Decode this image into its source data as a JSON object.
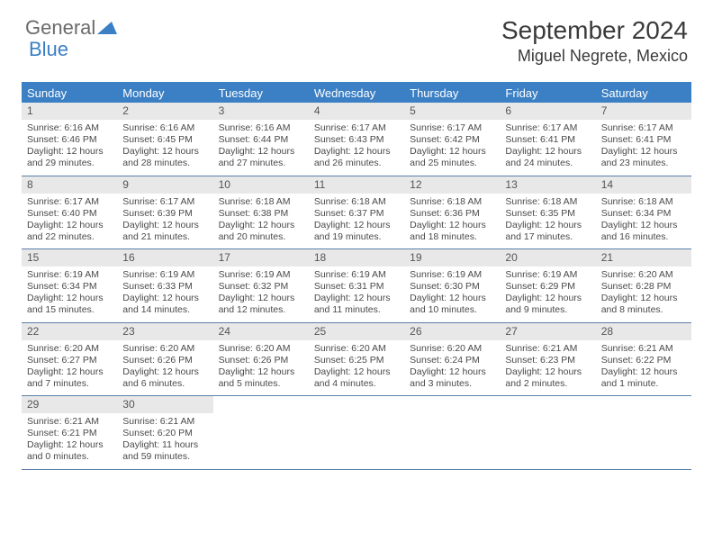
{
  "logo": {
    "text1": "General",
    "text2": "Blue"
  },
  "title": "September 2024",
  "location": "Miguel Negrete, Mexico",
  "colors": {
    "header_blue": "#3b7fc4",
    "daynum_bg": "#e8e8e8",
    "text": "#4a4a4a",
    "week_border": "#5a7fa8"
  },
  "weekdays": [
    "Sunday",
    "Monday",
    "Tuesday",
    "Wednesday",
    "Thursday",
    "Friday",
    "Saturday"
  ],
  "weeks": [
    [
      {
        "n": "1",
        "sr": "6:16 AM",
        "ss": "6:46 PM",
        "dl": "12 hours and 29 minutes."
      },
      {
        "n": "2",
        "sr": "6:16 AM",
        "ss": "6:45 PM",
        "dl": "12 hours and 28 minutes."
      },
      {
        "n": "3",
        "sr": "6:16 AM",
        "ss": "6:44 PM",
        "dl": "12 hours and 27 minutes."
      },
      {
        "n": "4",
        "sr": "6:17 AM",
        "ss": "6:43 PM",
        "dl": "12 hours and 26 minutes."
      },
      {
        "n": "5",
        "sr": "6:17 AM",
        "ss": "6:42 PM",
        "dl": "12 hours and 25 minutes."
      },
      {
        "n": "6",
        "sr": "6:17 AM",
        "ss": "6:41 PM",
        "dl": "12 hours and 24 minutes."
      },
      {
        "n": "7",
        "sr": "6:17 AM",
        "ss": "6:41 PM",
        "dl": "12 hours and 23 minutes."
      }
    ],
    [
      {
        "n": "8",
        "sr": "6:17 AM",
        "ss": "6:40 PM",
        "dl": "12 hours and 22 minutes."
      },
      {
        "n": "9",
        "sr": "6:17 AM",
        "ss": "6:39 PM",
        "dl": "12 hours and 21 minutes."
      },
      {
        "n": "10",
        "sr": "6:18 AM",
        "ss": "6:38 PM",
        "dl": "12 hours and 20 minutes."
      },
      {
        "n": "11",
        "sr": "6:18 AM",
        "ss": "6:37 PM",
        "dl": "12 hours and 19 minutes."
      },
      {
        "n": "12",
        "sr": "6:18 AM",
        "ss": "6:36 PM",
        "dl": "12 hours and 18 minutes."
      },
      {
        "n": "13",
        "sr": "6:18 AM",
        "ss": "6:35 PM",
        "dl": "12 hours and 17 minutes."
      },
      {
        "n": "14",
        "sr": "6:18 AM",
        "ss": "6:34 PM",
        "dl": "12 hours and 16 minutes."
      }
    ],
    [
      {
        "n": "15",
        "sr": "6:19 AM",
        "ss": "6:34 PM",
        "dl": "12 hours and 15 minutes."
      },
      {
        "n": "16",
        "sr": "6:19 AM",
        "ss": "6:33 PM",
        "dl": "12 hours and 14 minutes."
      },
      {
        "n": "17",
        "sr": "6:19 AM",
        "ss": "6:32 PM",
        "dl": "12 hours and 12 minutes."
      },
      {
        "n": "18",
        "sr": "6:19 AM",
        "ss": "6:31 PM",
        "dl": "12 hours and 11 minutes."
      },
      {
        "n": "19",
        "sr": "6:19 AM",
        "ss": "6:30 PM",
        "dl": "12 hours and 10 minutes."
      },
      {
        "n": "20",
        "sr": "6:19 AM",
        "ss": "6:29 PM",
        "dl": "12 hours and 9 minutes."
      },
      {
        "n": "21",
        "sr": "6:20 AM",
        "ss": "6:28 PM",
        "dl": "12 hours and 8 minutes."
      }
    ],
    [
      {
        "n": "22",
        "sr": "6:20 AM",
        "ss": "6:27 PM",
        "dl": "12 hours and 7 minutes."
      },
      {
        "n": "23",
        "sr": "6:20 AM",
        "ss": "6:26 PM",
        "dl": "12 hours and 6 minutes."
      },
      {
        "n": "24",
        "sr": "6:20 AM",
        "ss": "6:26 PM",
        "dl": "12 hours and 5 minutes."
      },
      {
        "n": "25",
        "sr": "6:20 AM",
        "ss": "6:25 PM",
        "dl": "12 hours and 4 minutes."
      },
      {
        "n": "26",
        "sr": "6:20 AM",
        "ss": "6:24 PM",
        "dl": "12 hours and 3 minutes."
      },
      {
        "n": "27",
        "sr": "6:21 AM",
        "ss": "6:23 PM",
        "dl": "12 hours and 2 minutes."
      },
      {
        "n": "28",
        "sr": "6:21 AM",
        "ss": "6:22 PM",
        "dl": "12 hours and 1 minute."
      }
    ],
    [
      {
        "n": "29",
        "sr": "6:21 AM",
        "ss": "6:21 PM",
        "dl": "12 hours and 0 minutes."
      },
      {
        "n": "30",
        "sr": "6:21 AM",
        "ss": "6:20 PM",
        "dl": "11 hours and 59 minutes."
      },
      null,
      null,
      null,
      null,
      null
    ]
  ],
  "labels": {
    "sunrise": "Sunrise:",
    "sunset": "Sunset:",
    "daylight": "Daylight:"
  }
}
